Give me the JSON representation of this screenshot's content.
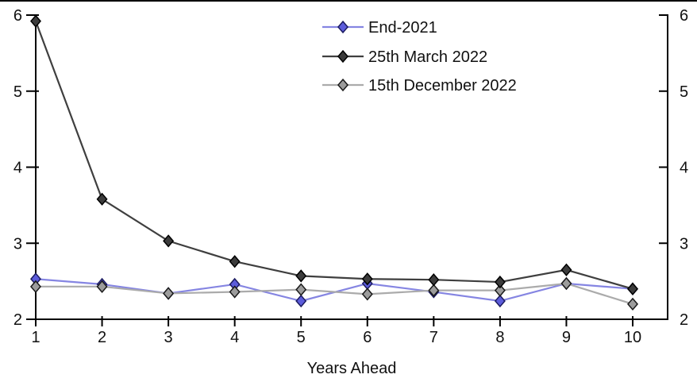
{
  "chart_data": {
    "type": "line",
    "title": "",
    "xlabel": "Years Ahead",
    "ylabel": "",
    "xlim": [
      1,
      10
    ],
    "ylim": [
      2,
      6
    ],
    "xticks": [
      1,
      2,
      3,
      4,
      5,
      6,
      7,
      8,
      9,
      10
    ],
    "yticks": [
      2,
      3,
      4,
      5,
      6
    ],
    "grid": false,
    "dual_y_axis": true,
    "legend_position": "top-center",
    "axis_color": "#000000",
    "marker_shape": "diamond",
    "x": [
      1,
      2,
      3,
      4,
      5,
      6,
      7,
      8,
      9,
      10
    ],
    "series": [
      {
        "name": "End-2021",
        "line_color": "#8585e2",
        "marker_fill": "#5c5cdb",
        "marker_edge": "#1c1c60",
        "values": [
          2.53,
          2.46,
          2.34,
          2.46,
          2.24,
          2.47,
          2.36,
          2.24,
          2.47,
          2.4
        ]
      },
      {
        "name": "25th March 2022",
        "line_color": "#3f3f3f",
        "marker_fill": "#3c3c3c",
        "marker_edge": "#000000",
        "values": [
          5.92,
          3.58,
          3.03,
          2.76,
          2.57,
          2.53,
          2.52,
          2.49,
          2.65,
          2.4
        ]
      },
      {
        "name": "15th December 2022",
        "line_color": "#ababab",
        "marker_fill": "#9c9c9c",
        "marker_edge": "#1a1a1a",
        "values": [
          2.43,
          2.43,
          2.34,
          2.36,
          2.39,
          2.33,
          2.38,
          2.38,
          2.47,
          2.2
        ]
      }
    ]
  }
}
